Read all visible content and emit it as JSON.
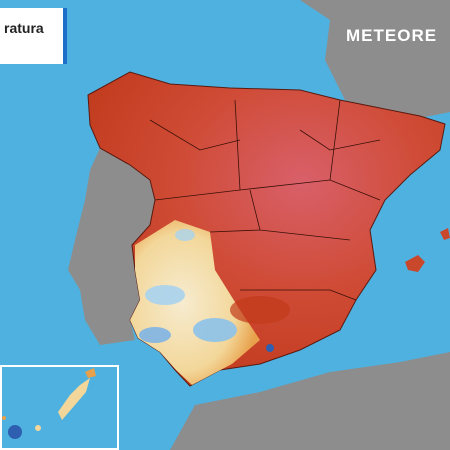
{
  "title_box": {
    "text": "ratura"
  },
  "logo": {
    "text": "METEORE"
  }
}
